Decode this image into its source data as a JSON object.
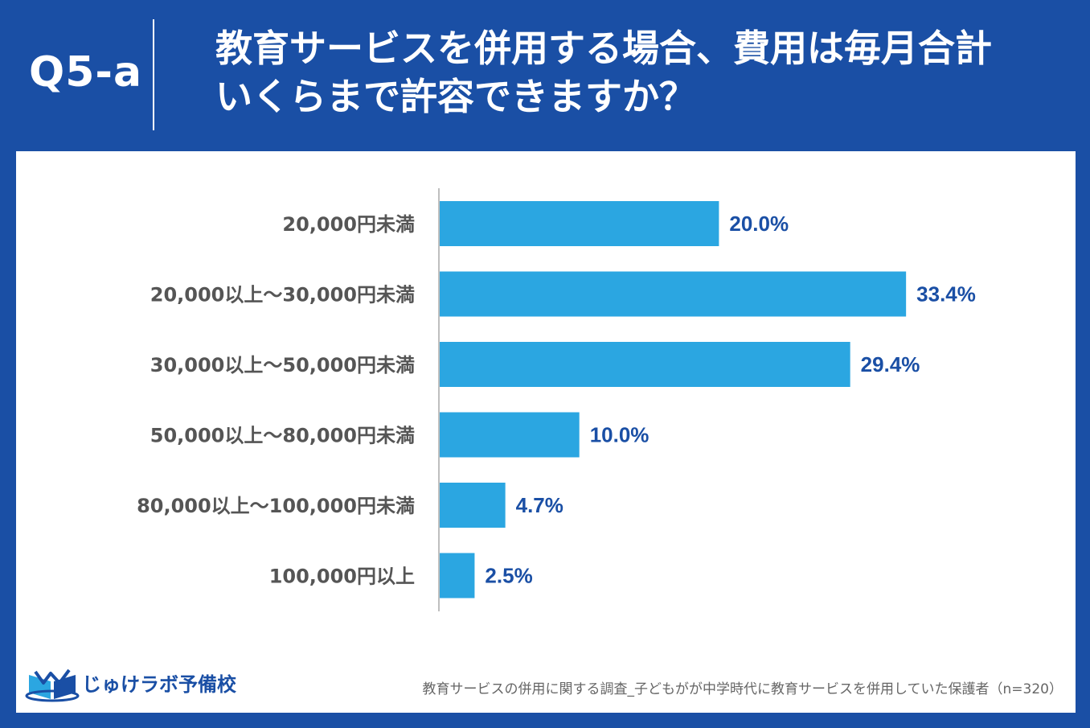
{
  "header": {
    "question_label": "Q5-a",
    "title_line1": "教育サービスを併用する場合、費用は毎月合計",
    "title_line2": "いくらまで許容できますか？"
  },
  "colors": {
    "brand": "#1a4fa5",
    "bar": "#2ba6e1",
    "value_text": "#1a4fa5",
    "category_text": "#555555"
  },
  "chart_data": {
    "type": "bar",
    "orientation": "horizontal",
    "categories": [
      "20,000円未満",
      "20,000以上～30,000円未満",
      "30,000以上～50,000円未満",
      "50,000以上～80,000円未満",
      "80,000以上～100,000円未満",
      "100,000円以上"
    ],
    "values": [
      20.0,
      33.4,
      29.4,
      10.0,
      4.7,
      2.5
    ],
    "value_labels": [
      "20.0%",
      "33.4%",
      "29.4%",
      "10.0%",
      "4.7%",
      "2.5%"
    ],
    "unit": "%",
    "grid": false
  },
  "footer": {
    "logo_text": "じゅけラボ予備校",
    "logo_icon": "open-book-icon",
    "source": "教育サービスの併用に関する調査_子どもがが中学時代に教育サービスを併用していた保護者（n=320）"
  }
}
